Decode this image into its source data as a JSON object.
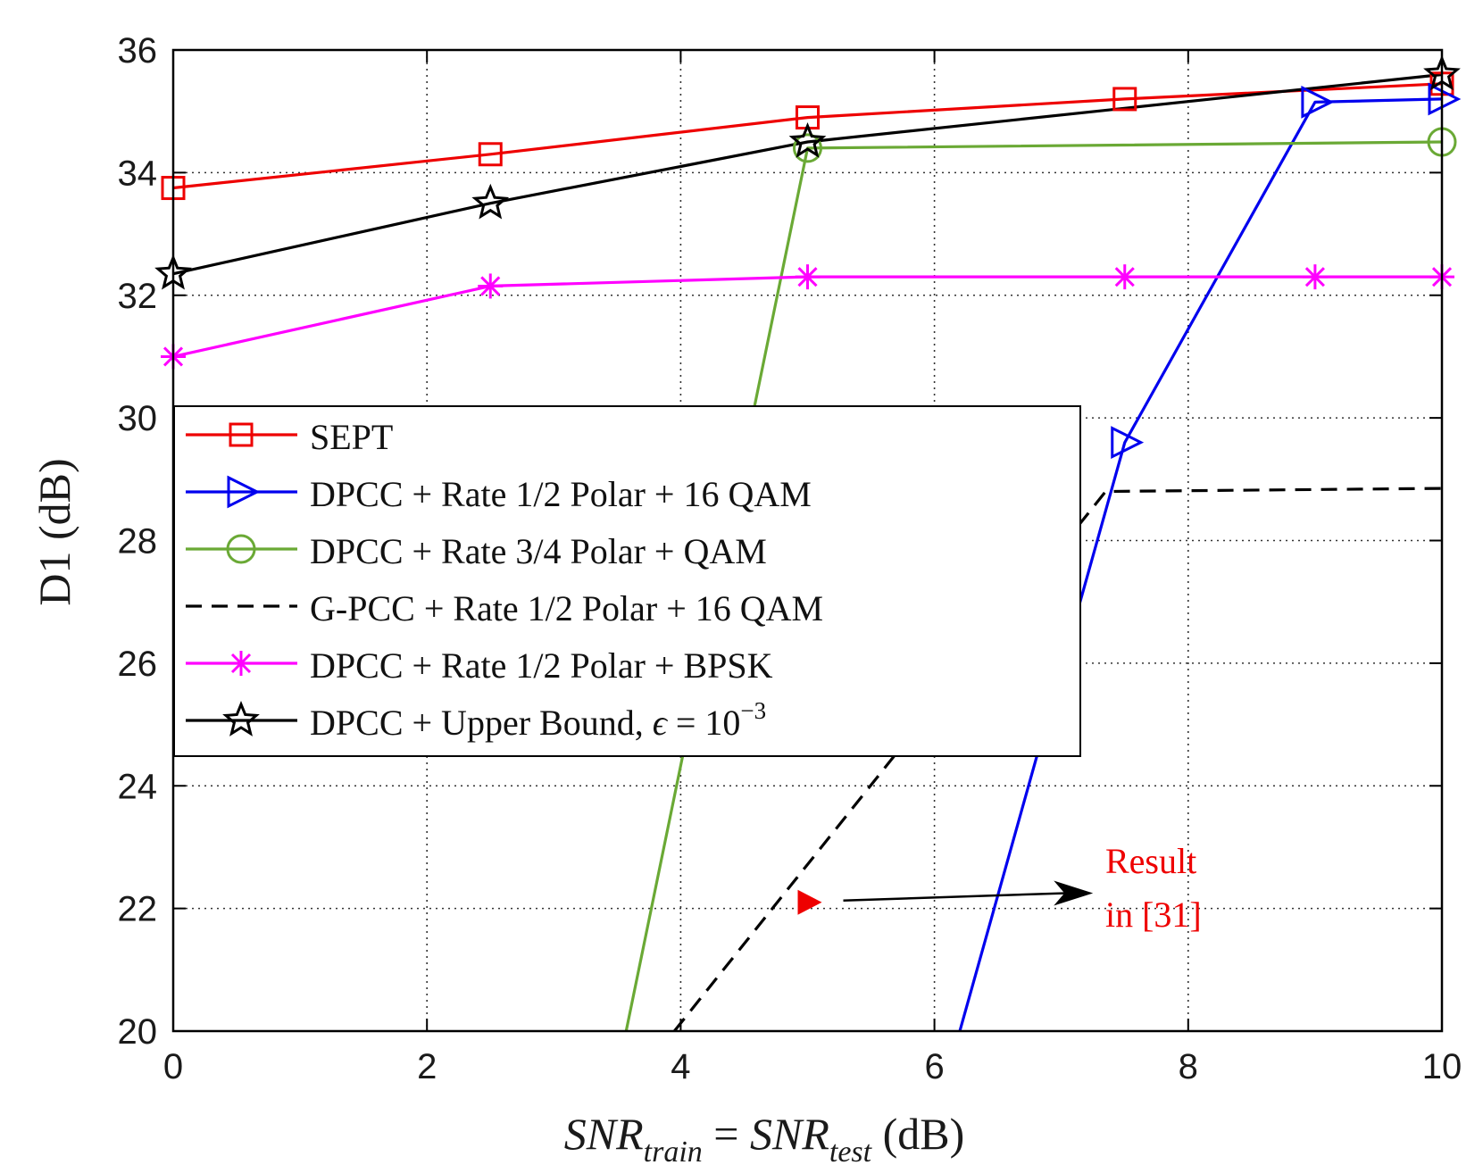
{
  "chart_data": {
    "type": "line",
    "xlabel": "SNR_train = SNR_test (dB)",
    "xlabel_parts": {
      "lhs": "SNR",
      "lhs_sub": "train",
      "eq": " = ",
      "rhs": "SNR",
      "rhs_sub": "test",
      "unit": " (dB)"
    },
    "ylabel": "D1 (dB)",
    "xlim": [
      0,
      10
    ],
    "ylim": [
      20,
      36
    ],
    "xticks": [
      0,
      2,
      4,
      6,
      8,
      10
    ],
    "yticks": [
      20,
      22,
      24,
      26,
      28,
      30,
      32,
      34,
      36
    ],
    "grid": true,
    "legend_position": "center-left",
    "series": [
      {
        "name": "SEPT",
        "color": "#ee0000",
        "marker": "square",
        "dash": "solid",
        "x": [
          0,
          2.5,
          5,
          7.5,
          10
        ],
        "y": [
          33.75,
          34.3,
          34.9,
          35.2,
          35.45
        ]
      },
      {
        "name": "DPCC + Rate 1/2 Polar + 16 QAM",
        "color": "#0000ee",
        "marker": "triangle-right",
        "dash": "solid",
        "x": [
          6.2,
          7.5,
          9,
          10
        ],
        "y": [
          20,
          29.6,
          35.15,
          35.2
        ]
      },
      {
        "name": "DPCC + Rate 3/4 Polar + QAM",
        "color": "#6aa935",
        "marker": "circle",
        "dash": "solid",
        "x": [
          3.57,
          5,
          10
        ],
        "y": [
          20,
          34.4,
          34.5
        ]
      },
      {
        "name": "G-PCC + Rate 1/2 Polar + 16 QAM",
        "color": "#000000",
        "marker": "none",
        "dash": "dashed",
        "x": [
          3.95,
          7.35,
          10
        ],
        "y": [
          20,
          28.8,
          28.85
        ]
      },
      {
        "name": "DPCC + Rate 1/2 Polar + BPSK",
        "color": "#ff00ff",
        "marker": "asterisk",
        "dash": "solid",
        "x": [
          0,
          2.5,
          5,
          7.5,
          9,
          10
        ],
        "y": [
          31.0,
          32.15,
          32.3,
          32.3,
          32.3,
          32.3
        ]
      },
      {
        "name": "DPCC + Upper Bound, ε = 10⁻³",
        "color": "#000000",
        "marker": "star",
        "dash": "solid",
        "x": [
          0,
          2.5,
          5,
          10
        ],
        "y": [
          32.35,
          33.5,
          34.5,
          35.6
        ]
      }
    ],
    "legend_labels": {
      "upper_bound_prefix": "DPCC + Upper Bound, ",
      "epsilon": "ϵ",
      "equals_base": " = 10",
      "exponent": "−3"
    },
    "annotation": {
      "marker_x": 5,
      "marker_y": 22.1,
      "marker_color": "#ee0000",
      "arrow_to_x": 7.25,
      "arrow_to_y": 22.25,
      "text_lines": [
        "Result",
        "in [31]"
      ],
      "text_color": "#ee0000"
    }
  }
}
